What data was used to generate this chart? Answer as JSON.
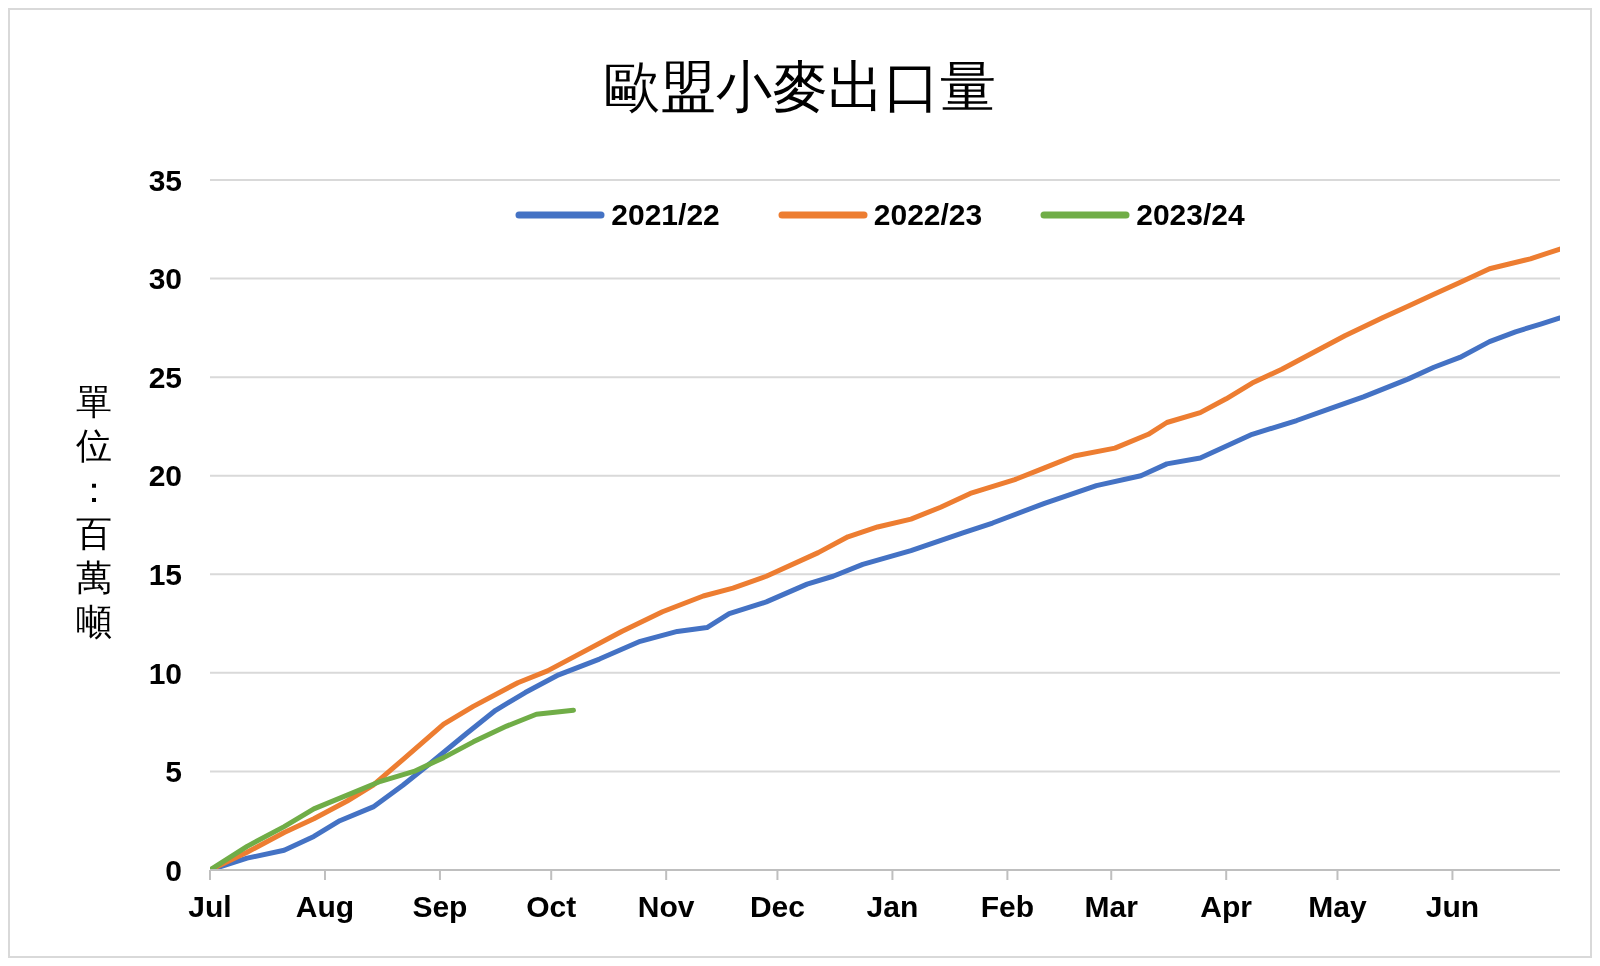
{
  "chart_data": {
    "type": "line",
    "title": "歐盟小麥出口量",
    "ylabel": "單位：百萬噸",
    "xlim": [
      "2021-07-01",
      "2022-06-30"
    ],
    "xticks": [
      {
        "value": "2021-07-01",
        "label": "Jul"
      },
      {
        "value": "2021-08-01",
        "label": "Aug"
      },
      {
        "value": "2021-09-01",
        "label": "Sep"
      },
      {
        "value": "2021-10-01",
        "label": "Oct"
      },
      {
        "value": "2021-11-01",
        "label": "Nov"
      },
      {
        "value": "2021-12-01",
        "label": "Dec"
      },
      {
        "value": "2022-01-01",
        "label": "Jan"
      },
      {
        "value": "2022-02-01",
        "label": "Feb"
      },
      {
        "value": "2022-03-01",
        "label": "Mar"
      },
      {
        "value": "2022-04-01",
        "label": "Apr"
      },
      {
        "value": "2022-05-01",
        "label": "May"
      },
      {
        "value": "2022-06-01",
        "label": "Jun"
      }
    ],
    "ylim": [
      0,
      35
    ],
    "yticks": [
      0,
      5,
      10,
      15,
      20,
      25,
      30,
      35
    ],
    "grid": "y",
    "legend": "top",
    "marker": "none",
    "line_style": "solid",
    "series": [
      {
        "name": "2021/22",
        "color": "#4472c4",
        "x": [
          "2021-07-01",
          "2021-07-11",
          "2021-07-21",
          "2021-07-29",
          "2021-08-05",
          "2021-08-14",
          "2021-08-22",
          "2021-08-30",
          "2021-09-08",
          "2021-09-16",
          "2021-09-24",
          "2021-10-03",
          "2021-10-14",
          "2021-10-25",
          "2021-11-04",
          "2021-11-12",
          "2021-11-18",
          "2021-11-28",
          "2021-12-09",
          "2021-12-16",
          "2021-12-24",
          "2022-01-06",
          "2022-01-20",
          "2022-01-28",
          "2022-02-11",
          "2022-02-25",
          "2022-03-09",
          "2022-03-16",
          "2022-03-25",
          "2022-04-08",
          "2022-04-20",
          "2022-04-29",
          "2022-05-08",
          "2022-05-20",
          "2022-05-27",
          "2022-06-03",
          "2022-06-11",
          "2022-06-18",
          "2022-06-25",
          "2022-06-30"
        ],
        "values": [
          0,
          0.6,
          1.0,
          1.7,
          2.5,
          3.2,
          4.3,
          5.5,
          6.9,
          8.1,
          9.0,
          9.9,
          10.7,
          11.6,
          12.1,
          12.3,
          13.0,
          13.6,
          14.5,
          14.9,
          15.5,
          16.2,
          17.1,
          17.6,
          18.6,
          19.5,
          20.0,
          20.6,
          20.9,
          22.1,
          22.8,
          23.4,
          24.0,
          24.9,
          25.5,
          26.0,
          26.8,
          27.3,
          27.7,
          28.0
        ]
      },
      {
        "name": "2022/23",
        "color": "#ed7d31",
        "x": [
          "2021-07-01",
          "2021-07-11",
          "2021-07-21",
          "2021-07-29",
          "2021-08-07",
          "2021-08-14",
          "2021-08-22",
          "2021-09-02",
          "2021-09-10",
          "2021-09-22",
          "2021-09-30",
          "2021-10-08",
          "2021-10-20",
          "2021-10-31",
          "2021-11-11",
          "2021-11-19",
          "2021-11-28",
          "2021-12-12",
          "2021-12-20",
          "2021-12-28",
          "2022-01-06",
          "2022-01-14",
          "2022-01-22",
          "2022-02-03",
          "2022-02-11",
          "2022-02-19",
          "2022-03-02",
          "2022-03-11",
          "2022-03-16",
          "2022-03-25",
          "2022-04-01",
          "2022-04-08",
          "2022-04-16",
          "2022-04-25",
          "2022-05-03",
          "2022-05-13",
          "2022-05-20",
          "2022-05-27",
          "2022-06-03",
          "2022-06-11",
          "2022-06-22",
          "2022-06-30"
        ],
        "values": [
          0,
          0.9,
          1.9,
          2.6,
          3.5,
          4.3,
          5.6,
          7.4,
          8.3,
          9.5,
          10.1,
          10.9,
          12.1,
          13.1,
          13.9,
          14.3,
          14.9,
          16.1,
          16.9,
          17.4,
          17.8,
          18.4,
          19.1,
          19.8,
          20.4,
          21.0,
          21.4,
          22.1,
          22.7,
          23.2,
          23.9,
          24.7,
          25.4,
          26.3,
          27.1,
          28.0,
          28.6,
          29.2,
          29.8,
          30.5,
          31.0,
          31.5
        ]
      },
      {
        "name": "2023/24",
        "color": "#70ad47",
        "x": [
          "2021-07-01",
          "2021-07-11",
          "2021-07-21",
          "2021-07-29",
          "2021-08-07",
          "2021-08-16",
          "2021-08-25",
          "2021-09-02",
          "2021-09-10",
          "2021-09-19",
          "2021-09-27",
          "2021-10-07"
        ],
        "values": [
          0,
          1.2,
          2.2,
          3.1,
          3.8,
          4.5,
          5.0,
          5.7,
          6.5,
          7.3,
          7.9,
          8.1
        ]
      }
    ]
  }
}
